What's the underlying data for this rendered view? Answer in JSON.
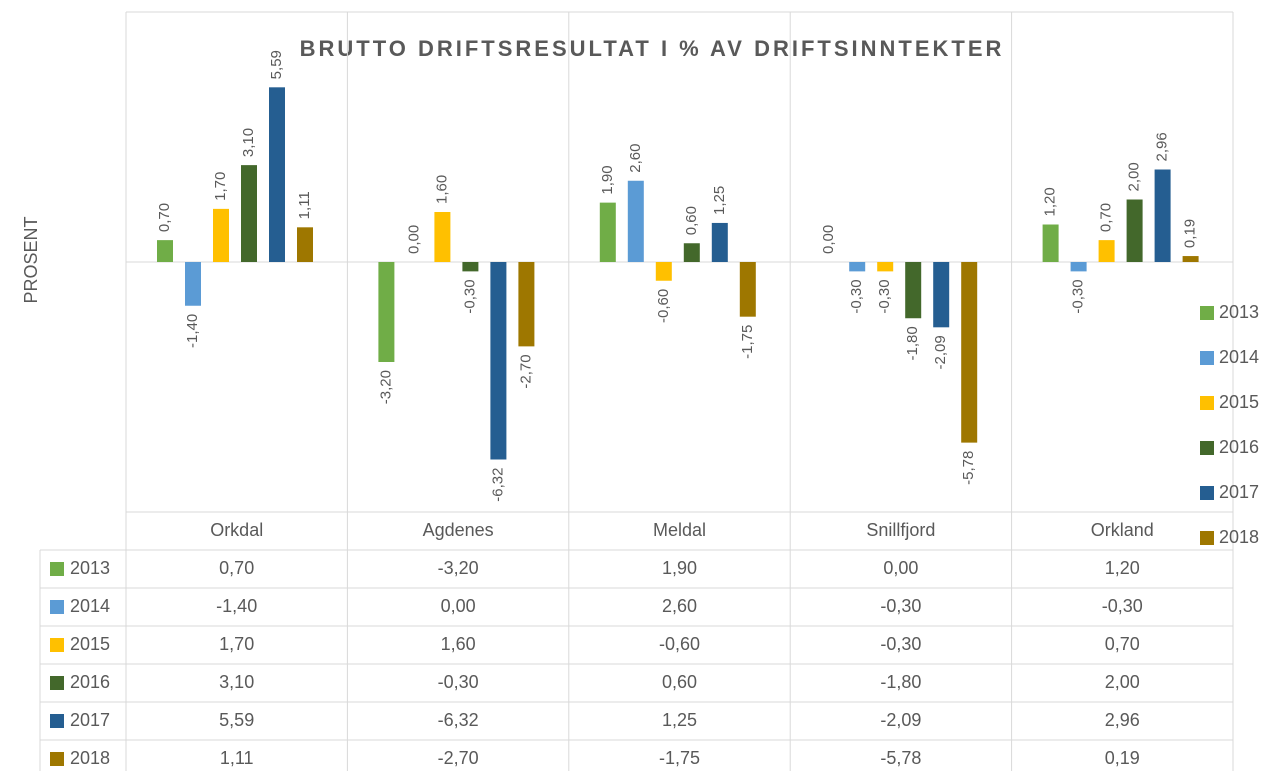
{
  "chart_data": {
    "type": "bar",
    "title": "BRUTTO DRIFTSRESULTAT I % AV DRIFTSINNTEKTER",
    "y_label": "PROSENT",
    "categories": [
      "Orkdal",
      "Agdenes",
      "Meldal",
      "Snillfjord",
      "Orkland"
    ],
    "series": [
      {
        "name": "2013",
        "color": "#70ad47",
        "values": [
          0.7,
          -3.2,
          1.9,
          0.0,
          1.2
        ],
        "value_labels": [
          "0,70",
          "-3,20",
          "1,90",
          "0,00",
          "1,20"
        ]
      },
      {
        "name": "2014",
        "color": "#5b9bd5",
        "values": [
          -1.4,
          0.0,
          2.6,
          -0.3,
          -0.3
        ],
        "value_labels": [
          "-1,40",
          "0,00",
          "2,60",
          "-0,30",
          "-0,30"
        ]
      },
      {
        "name": "2015",
        "color": "#ffc000",
        "values": [
          1.7,
          1.6,
          -0.6,
          -0.3,
          0.7
        ],
        "value_labels": [
          "1,70",
          "1,60",
          "-0,60",
          "-0,30",
          "0,70"
        ]
      },
      {
        "name": "2016",
        "color": "#43682b",
        "values": [
          3.1,
          -0.3,
          0.6,
          -1.8,
          2.0
        ],
        "value_labels": [
          "3,10",
          "-0,30",
          "0,60",
          "-1,80",
          "2,00"
        ]
      },
      {
        "name": "2017",
        "color": "#255e91",
        "values": [
          5.59,
          -6.32,
          1.25,
          -2.09,
          2.96
        ],
        "value_labels": [
          "5,59",
          "-6,32",
          "1,25",
          "-2,09",
          "2,96"
        ]
      },
      {
        "name": "2018",
        "color": "#9e7700",
        "values": [
          1.11,
          -2.7,
          -1.75,
          -5.78,
          0.19
        ],
        "value_labels": [
          "1,11",
          "-2,70",
          "-1,75",
          "-5,78",
          "0,19"
        ]
      }
    ],
    "ylim": [
      -8,
      8
    ],
    "legend": "right",
    "data_table": true
  }
}
